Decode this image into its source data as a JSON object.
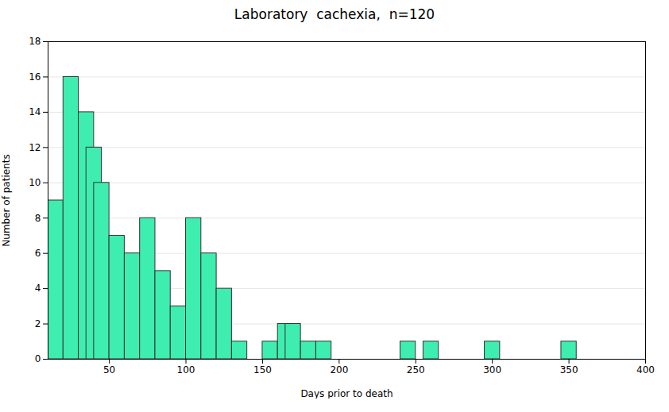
{
  "chart_data": {
    "type": "bar",
    "title": "Laboratory  cachexia,  n=120",
    "x_label": "Days prior to death",
    "y_label": "Number of patients",
    "x": [
      10,
      20,
      30,
      35,
      40,
      50,
      60,
      70,
      80,
      90,
      100,
      110,
      120,
      130,
      150,
      160,
      165,
      175,
      185,
      240,
      255,
      295,
      345
    ],
    "values": [
      9,
      16,
      14,
      12,
      10,
      7,
      6,
      8,
      5,
      3,
      8,
      6,
      4,
      1,
      1,
      2,
      2,
      1,
      1,
      1,
      1,
      1,
      1
    ],
    "bar_width": 10,
    "color": "#3EEDB0",
    "xlim": [
      10,
      400
    ],
    "xticks": [
      50,
      100,
      150,
      200,
      250,
      300,
      350,
      400
    ],
    "ylim": [
      0,
      18
    ],
    "yticks": [
      0,
      2,
      4,
      6,
      8,
      10,
      12,
      14,
      16,
      18
    ],
    "grid": true
  }
}
